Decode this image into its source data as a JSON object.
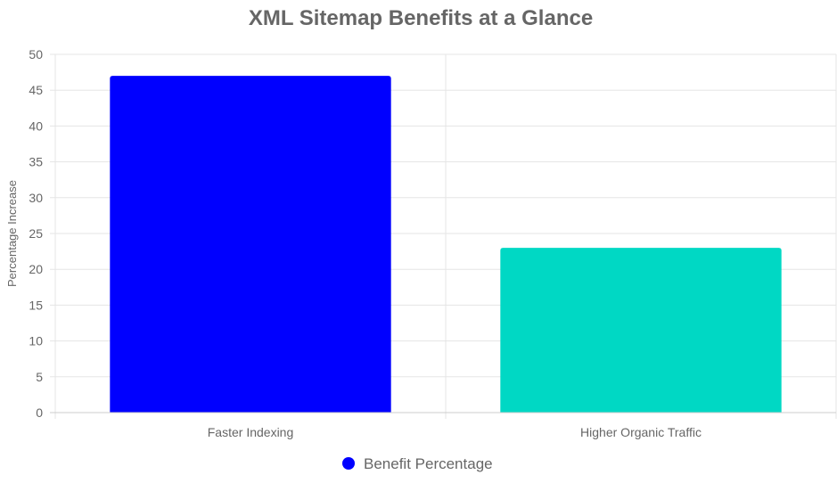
{
  "chart_data": {
    "type": "bar",
    "title": "XML Sitemap Benefits at a Glance",
    "categories": [
      "Faster Indexing",
      "Higher Organic Traffic"
    ],
    "series": [
      {
        "name": "Benefit Percentage",
        "values": [
          47,
          23
        ],
        "colors": [
          "#0000ff",
          "#00d8c4"
        ]
      }
    ],
    "xlabel": "",
    "ylabel": "Percentage Increase",
    "ylim": [
      0,
      50
    ],
    "yticks": [
      0,
      5,
      10,
      15,
      20,
      25,
      30,
      35,
      40,
      45,
      50
    ],
    "grid": true,
    "legend_position": "bottom",
    "legend_marker_color": "#0000ff"
  }
}
